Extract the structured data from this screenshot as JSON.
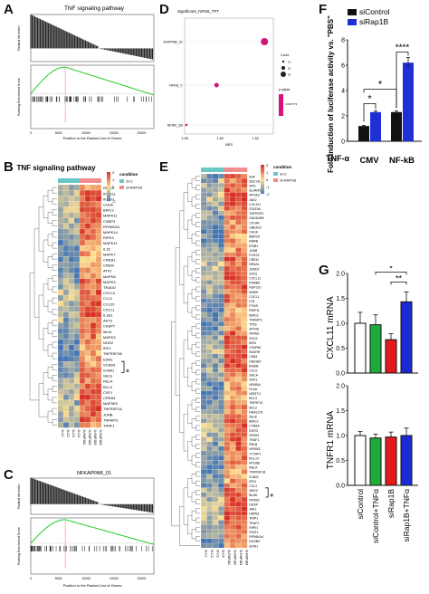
{
  "panels": {
    "A": {
      "letter": "A",
      "title": "TNF signaling pathway",
      "ylabel_top": "Ranked list metric",
      "ylabel_bottom": "Running Enrichment Score",
      "xlabel": "Position in the Ranked List of Genes",
      "xticks": [
        "0",
        "5000",
        "10000",
        "15000",
        "20000"
      ]
    },
    "B": {
      "letter": "B",
      "title": "TNF signaling pathway",
      "legend_title": "condition",
      "legend_items": [
        "Si-C",
        "Si-RAP1B"
      ],
      "scale_ticks": [
        "2",
        "1",
        "0",
        "-1",
        "-2"
      ],
      "genes": [
        "RIPK3",
        "IFNB1",
        "IKBKG",
        "CHUK",
        "BIRC2",
        "MAPK11",
        "CSBP3",
        "RPS6KA4",
        "MAPK14",
        "RIPK3",
        "MAPK11",
        "IL15",
        "MAPK7",
        "CREB1",
        "CREM",
        "ATF2",
        "MAPK8",
        "MAPK3",
        "TRADD",
        "CXCL3",
        "CCL2",
        "CCL20",
        "CXCL1",
        "IL1B1",
        "AKT3",
        "CASP7",
        "MLKL",
        "MAPK3",
        "NOD2",
        "IRF1",
        "TNFRSF1B",
        "EDN1",
        "VCAM1",
        "ICAM1",
        "SELE",
        "RELA",
        "BCL3",
        "CSF1",
        "CREB3",
        "MAP3K5",
        "TNFRSF1A",
        "JUNB",
        "TNFAIP3",
        "TRAF1"
      ],
      "samples": [
        "Si-C1",
        "Si-C2",
        "Si-C3",
        "Si-C4",
        "Si-RAP1B1",
        "Si-RAP1B2",
        "Si-RAP1B3",
        "Si-RAP1B4"
      ],
      "marker": "*",
      "marked_gene": "VCAM1"
    },
    "C": {
      "letter": "C",
      "title": "NFKAPPAB_01",
      "ylabel_top": "Ranked list metric",
      "ylabel_bottom": "Running Enrichment Score",
      "xlabel": "Position in the Ranked List of Genes",
      "xticks": [
        "0",
        "5000",
        "10000",
        "15000",
        "20000"
      ]
    },
    "D": {
      "letter": "D",
      "title": "Significant_NFKB_TFT",
      "xlabel": "NES",
      "xticks": [
        "1.58",
        "1.60",
        "1.62"
      ],
      "size_legend_title": "Count",
      "size_legend_items": [
        "10",
        "20",
        "30"
      ],
      "color_legend_title": "p.adjust",
      "color_legend_value": "0.0007773"
    },
    "E": {
      "letter": "E",
      "legend_title": "condition",
      "legend_items": [
        "Si-C",
        "Si-RAP1B"
      ],
      "scale_ticks": [
        "2",
        "1",
        "0",
        "-1",
        "-2"
      ],
      "genes": [
        "EHF",
        "SEC14L2",
        "SPI1",
        "SLAMF6",
        "APOE3",
        "JAK2",
        "LOC101",
        "STAT5A",
        "TNFRSF9",
        "GADD45B",
        "CFLAR",
        "UBE2D3",
        "CHUK",
        "BMP2K",
        "RARB",
        "IFNB1",
        "JUNB",
        "FOXS1",
        "CREM",
        "NR4A1",
        "JUND2",
        "SOS1",
        "CXCL11",
        "PSMB9",
        "NUP210",
        "IKBKE",
        "CXCL1",
        "LTB",
        "PTMS",
        "RSPH1",
        "BIRC3",
        "TNFAIP3",
        "TP53",
        "ZFP36",
        "NFKB2",
        "SOX2",
        "IER3",
        "CFAP69",
        "SIGIRR",
        "CD83",
        "HSD3B7",
        "IKBKB",
        "CCL5",
        "SNCA",
        "SGK1",
        "NFKBIA",
        "PLAU",
        "NFATC1",
        "BCL3",
        "TNFSF10",
        "BCL2",
        "FAM117A",
        "SELE",
        "BIRC2",
        "CYB5A",
        "EGR3",
        "NFKB1",
        "TRAF1",
        "RELB",
        "NFKBIZ",
        "YY1AP1",
        "BCL10",
        "MYD88",
        "RELA",
        "TNFRSF1B",
        "ICAM1",
        "IRF3",
        "CCL2",
        "SMC2",
        "BLNK",
        "NFKB3",
        "DUSP",
        "JAK1",
        "HSPB1",
        "TNIP1",
        "TRAF2",
        "RIPK1",
        "STAT1",
        "RPS6KA4",
        "HOXB9",
        "AZIN1"
      ],
      "samples": [
        "Si-C1",
        "Si-C2",
        "Si-C3",
        "Si-C4",
        "Si-RAP1B1",
        "Si-RAP1B2",
        "Si-RAP1B3",
        "Si-RAP1B4"
      ],
      "marker": "*",
      "marked_gene": "SMC2"
    },
    "F": {
      "letter": "F",
      "legend_items": [
        "siControl",
        "siRap1B"
      ],
      "ylabel": "Fold induction of luciferase activity vs. \"PBS\"",
      "yticks": [
        "0",
        "2",
        "4",
        "6",
        "8"
      ],
      "treatment_label": "TNF-α",
      "groups": [
        "CMV",
        "NF-kB"
      ],
      "sig_within_cmv": "*",
      "sig_between": "*",
      "sig_within_nfkb": "****"
    },
    "G": {
      "letter": "G",
      "top_ylabel": "CXCL11 mRNA",
      "bottom_ylabel": "TNFR1 mRNA",
      "yticks": [
        "0.0",
        "0.5",
        "1.0",
        "1.5",
        "2.0"
      ],
      "sig_1": "*",
      "sig_2": "**",
      "categories": [
        "siControl",
        "siControl+TNFα",
        "siRap1B",
        "siRap1B+TNFα"
      ]
    }
  },
  "colors": {
    "siControl": "#111111",
    "siRap1B": "#1f2fd6",
    "cond_si_c": "#66c7c4",
    "cond_si_rap1b": "#f08c8c",
    "heat_high": "#d73027",
    "heat_mid": "#fee090",
    "heat_low": "#4575b4",
    "gsea_curve": "#22cc22",
    "dot_color": "#d4147a",
    "g_white": "#ffffff",
    "g_green": "#1faa3a",
    "g_red": "#e3191c",
    "g_blue": "#1c2ad6"
  },
  "chart_data": [
    {
      "type": "bar",
      "panel": "F",
      "categories": [
        "CMV",
        "NF-kB"
      ],
      "series": [
        {
          "name": "siControl",
          "values": [
            1.2,
            2.3
          ],
          "errors": [
            0.05,
            0.1
          ]
        },
        {
          "name": "siRap1B",
          "values": [
            2.3,
            6.2
          ],
          "errors": [
            0.1,
            0.4
          ]
        }
      ],
      "ylabel": "Fold induction of luciferase activity vs. \"PBS\"",
      "ylim": [
        0,
        8
      ],
      "yticks": [
        0,
        2,
        4,
        6,
        8
      ],
      "legend": "top-left"
    },
    {
      "type": "bar",
      "panel": "G-top",
      "categories": [
        "siControl",
        "siControl+TNFα",
        "siRap1B",
        "siRap1B+TNFα"
      ],
      "values": [
        1.0,
        0.97,
        0.67,
        1.43
      ],
      "errors": [
        0.22,
        0.2,
        0.12,
        0.2
      ],
      "ylabel": "CXCL11 mRNA",
      "ylim": [
        0,
        2
      ],
      "yticks": [
        0,
        0.5,
        1.0,
        1.5,
        2.0
      ]
    },
    {
      "type": "bar",
      "panel": "G-bottom",
      "categories": [
        "siControl",
        "siControl+TNFα",
        "siRap1B",
        "siRap1B+TNFα"
      ],
      "values": [
        1.0,
        0.95,
        0.97,
        1.0
      ],
      "errors": [
        0.08,
        0.08,
        0.1,
        0.15
      ],
      "ylabel": "TNFR1 mRNA",
      "ylim": [
        0,
        2
      ],
      "yticks": [
        0,
        0.5,
        1.0,
        1.5,
        2.0
      ]
    },
    {
      "type": "scatter",
      "panel": "D",
      "categories": [
        "NFKAPPAB_01",
        "NFKB_C",
        "NFKB_Q6"
      ],
      "x": [
        1.625,
        1.598,
        1.581
      ],
      "ylabel": "",
      "xlabel": "NES",
      "xlim": [
        1.58,
        1.63
      ]
    }
  ]
}
